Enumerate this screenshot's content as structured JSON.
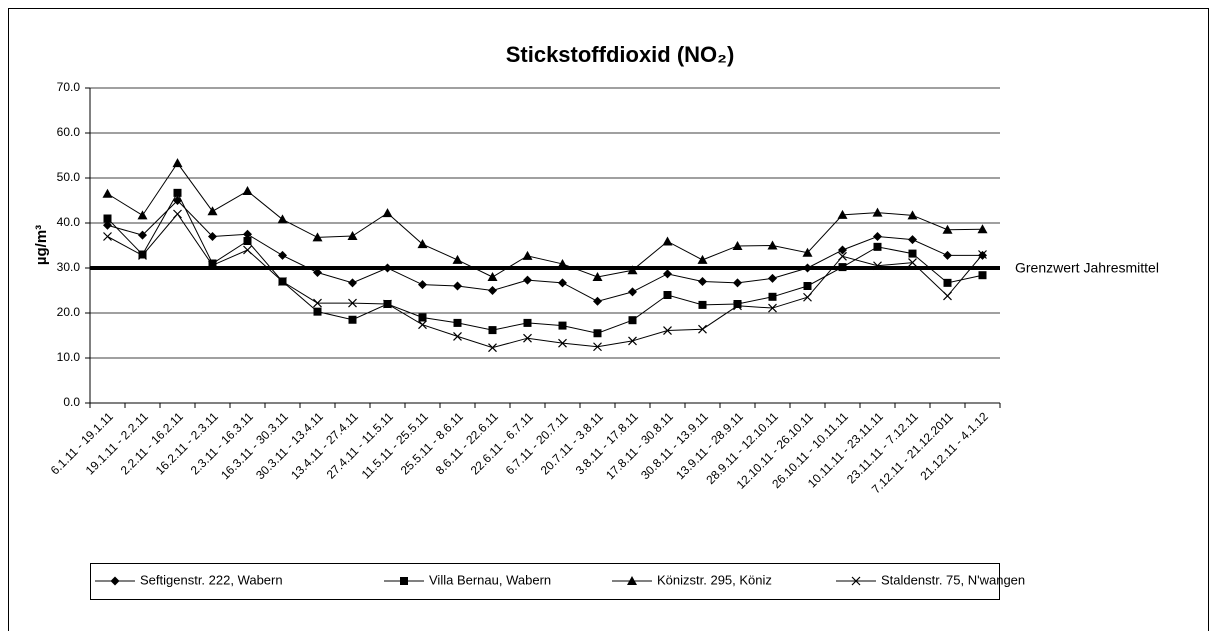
{
  "chart_data": {
    "type": "line",
    "title": "Stickstoffdioxid (NO₂)",
    "y_label": "µg/m³",
    "categories": [
      "6.1.11 - 19.1.11",
      "19.1.11 - 2.2.11",
      "2.2.11 - 16.2.11",
      "16.2.11 - 2.3.11",
      "2.3.11 - 16.3.11",
      "16.3.11 - 30.3.11",
      "30.3.11 - 13.4.11",
      "13.4.11 - 27.4.11",
      "27.4.11 - 11.5.11",
      "11.5.11 - 25.5.11",
      "25.5.11 - 8.6.11",
      "8.6.11 - 22.6.11",
      "22.6.11 - 6.7.11",
      "6.7.11 - 20.7.11",
      "20.7.11 - 3.8.11",
      "3.8.11 - 17.8.11",
      "17.8.11 - 30.8.11",
      "30.8.11 - 13.9.11",
      "13.9.11 - 28.9.11",
      "28.9.11 - 12.10.11",
      "12.10.11 - 26.10.11",
      "26.10.11 - 10.11.11",
      "10.11.11 - 23.11.11",
      "23.11.11 - 7.12.11",
      "7.12.11 - 21.12.2011",
      "21.12.11 - 4.1.12"
    ],
    "series": [
      {
        "name": "Seftigenstr. 222, Wabern",
        "color": "#000000",
        "marker": "diamond",
        "values": [
          39.5,
          37.3,
          45,
          37,
          37.5,
          32.8,
          29,
          26.7,
          30,
          26.3,
          26,
          25,
          27.3,
          26.7,
          22.6,
          24.7,
          28.7,
          27,
          26.7,
          27.7,
          30,
          34,
          37,
          36.3,
          32.8,
          32.8
        ]
      },
      {
        "name": "Villa Bernau, Wabern",
        "color": "#000000",
        "marker": "square",
        "values": [
          41,
          33,
          46.7,
          31,
          36,
          27,
          20.3,
          18.5,
          22,
          19,
          17.8,
          16.2,
          17.8,
          17.2,
          15.5,
          18.4,
          24,
          21.8,
          22,
          23.6,
          26,
          30.2,
          34.7,
          33.2,
          26.7,
          28.4
        ]
      },
      {
        "name": "Könizstr. 295, Köniz",
        "color": "#000000",
        "marker": "triangle",
        "values": [
          46.5,
          41.7,
          53.3,
          42.6,
          47.1,
          40.8,
          36.8,
          37.1,
          42.2,
          35.3,
          31.8,
          28,
          32.7,
          30.9,
          28,
          29.5,
          35.9,
          31.8,
          34.9,
          35,
          33.4,
          41.8,
          42.3,
          41.7,
          38.5,
          38.6
        ]
      },
      {
        "name": "Staldenstr. 75, N'wangen",
        "color": "#000000",
        "marker": "x",
        "values": [
          37,
          32.8,
          42,
          30.6,
          34,
          27,
          22.2,
          22.2,
          22,
          17.4,
          14.8,
          12.3,
          14.4,
          13.3,
          12.5,
          13.8,
          16.1,
          16.4,
          21.6,
          21.1,
          23.5,
          32.6,
          30.5,
          31.2,
          23.8,
          33
        ]
      }
    ],
    "reference_line": {
      "value": 30,
      "label": "Grenzwert Jahresmittel"
    },
    "ylim": [
      0,
      70
    ],
    "yticks": [
      {
        "value": 0,
        "label": "0.0"
      },
      {
        "value": 10,
        "label": "10.0"
      },
      {
        "value": 20,
        "label": "20.0"
      },
      {
        "value": 30,
        "label": "30.0"
      },
      {
        "value": 40,
        "label": "40.0"
      },
      {
        "value": 50,
        "label": "50.0"
      },
      {
        "value": 60,
        "label": "60.0"
      },
      {
        "value": 70,
        "label": "70.0"
      }
    ],
    "grid": true,
    "legend": "bottom"
  }
}
